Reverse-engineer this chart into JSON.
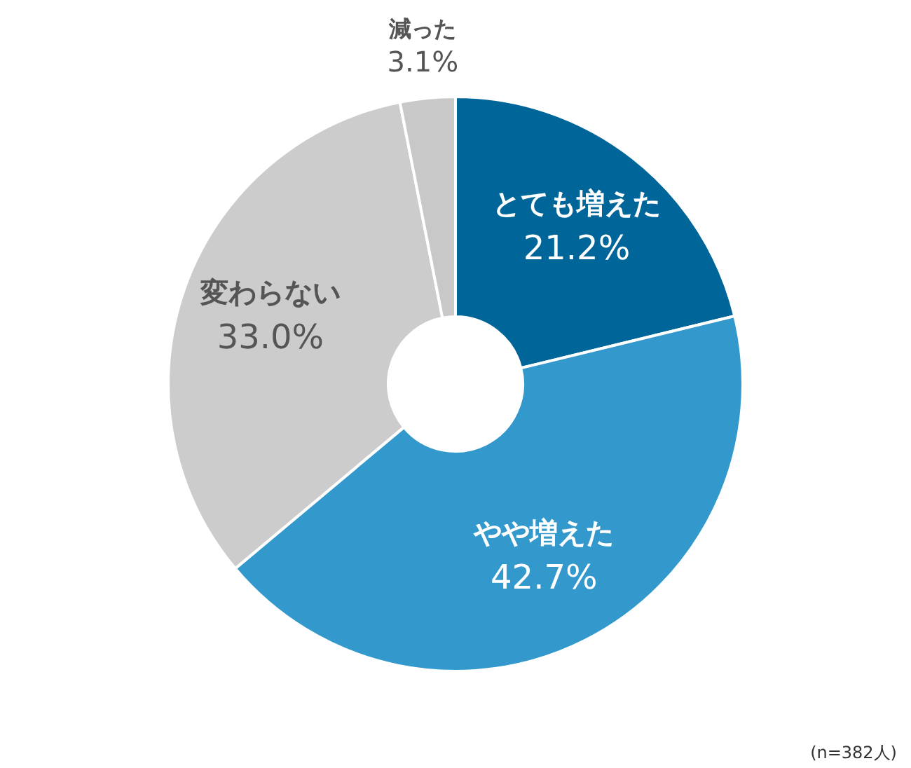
{
  "chart_data": {
    "type": "donut",
    "categories": [
      "とても増えた",
      "やや増えた",
      "変わらない",
      "減った"
    ],
    "values": [
      21.2,
      42.7,
      33.0,
      3.1
    ],
    "colors": [
      "#006699",
      "#3399cc",
      "#cccccc",
      "#c8c8c8"
    ],
    "value_labels": [
      "21.2%",
      "42.7%",
      "33.0%",
      "3.1%"
    ],
    "annotations": [
      "(n=382人)"
    ]
  }
}
